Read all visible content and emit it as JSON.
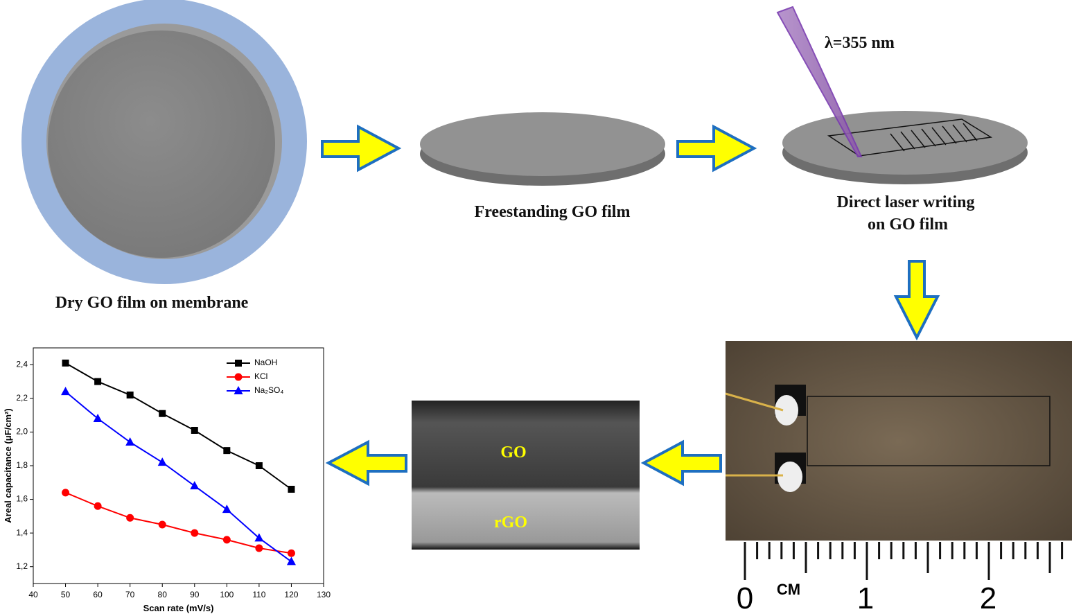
{
  "steps": {
    "dry_film": "Dry GO film on membrane",
    "freestanding": "Freestanding GO film",
    "laser_writing": [
      "Direct laser writing",
      "on GO film"
    ],
    "wavelength": "λ=355 nm"
  },
  "sem": {
    "top": "GO",
    "bottom": "rGO"
  },
  "ruler": {
    "zero": "0",
    "unit": "CM",
    "one": "1",
    "two": "2"
  },
  "chart_data": {
    "type": "line",
    "x": [
      50,
      60,
      70,
      80,
      90,
      100,
      110,
      120
    ],
    "xlabel": "Scan rate (mV/s)",
    "ylabel": "Areal capacitance (μF/cm²)",
    "xlim": [
      40,
      130
    ],
    "xticks": [
      40,
      50,
      60,
      70,
      80,
      90,
      100,
      110,
      120,
      130
    ],
    "ylim": [
      1.1,
      2.5
    ],
    "yticks": [
      {
        "value": 1.2,
        "label": "1,2"
      },
      {
        "value": 1.4,
        "label": "1,4"
      },
      {
        "value": 1.6,
        "label": "1,6"
      },
      {
        "value": 1.8,
        "label": "1,8"
      },
      {
        "value": 2.0,
        "label": "2,0"
      },
      {
        "value": 2.2,
        "label": "2,2"
      },
      {
        "value": 2.4,
        "label": "2,4"
      }
    ],
    "legend": "upper right",
    "series": [
      {
        "name": "NaOH",
        "color": "#000000",
        "marker": "square",
        "values": [
          2.41,
          2.3,
          2.22,
          2.11,
          2.01,
          1.89,
          1.8,
          1.66
        ]
      },
      {
        "name": "KCl",
        "color": "#ff0000",
        "marker": "circle",
        "values": [
          1.64,
          1.56,
          1.49,
          1.45,
          1.4,
          1.36,
          1.31,
          1.28
        ]
      },
      {
        "name": "Na₂SO₄",
        "color": "#0000ff",
        "marker": "triangle",
        "values": [
          2.24,
          2.08,
          1.94,
          1.82,
          1.68,
          1.54,
          1.37,
          1.23
        ]
      }
    ]
  }
}
